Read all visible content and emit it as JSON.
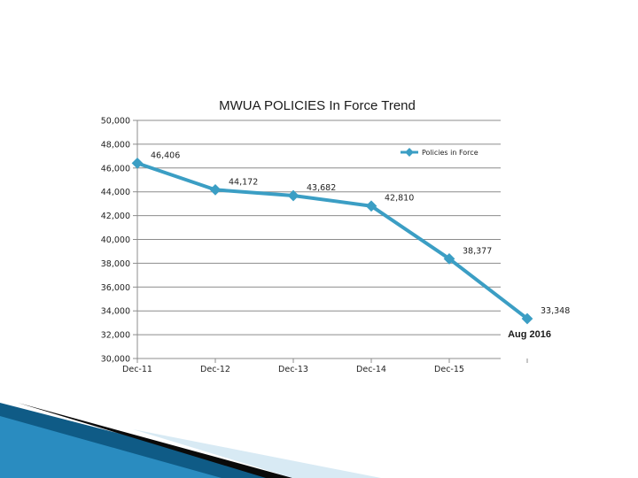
{
  "chart_data": {
    "type": "line",
    "title": "MWUA POLICIES In Force Trend",
    "xlabel": "",
    "ylabel": "",
    "categories": [
      "Dec-11",
      "Dec-12",
      "Dec-13",
      "Dec-14",
      "Dec-15",
      ""
    ],
    "series": [
      {
        "name": "Policies in Force",
        "values": [
          46406,
          44172,
          43682,
          42810,
          38377,
          33348
        ],
        "labels": [
          "46,406",
          "44,172",
          "43,682",
          "42,810",
          "38,377",
          "33,348"
        ]
      }
    ],
    "ylim": [
      30000,
      50000
    ],
    "yticks": [
      30000,
      32000,
      34000,
      36000,
      38000,
      40000,
      42000,
      44000,
      46000,
      48000,
      50000
    ],
    "ytick_labels": [
      "30,000",
      "32,000",
      "34,000",
      "36,000",
      "38,000",
      "40,000",
      "42,000",
      "44,000",
      "46,000",
      "48,000",
      "50,000"
    ],
    "grid": true,
    "legend_position": "top-right",
    "annotation": "Aug 2016",
    "line_color": "#3b9ec4",
    "marker_color": "#3b9ec4"
  },
  "theme": {
    "accent_dark": "#0d4f73",
    "accent_light": "#7fc4e3"
  }
}
